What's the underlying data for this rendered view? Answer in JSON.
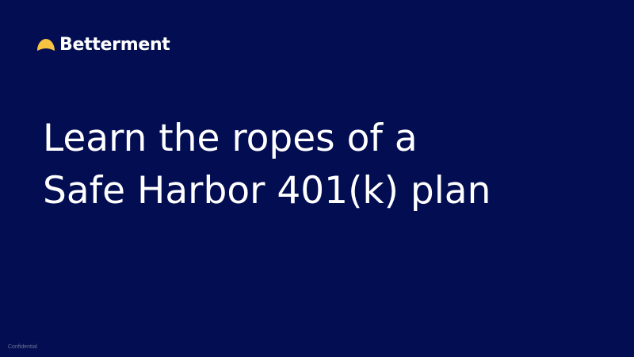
{
  "brand": {
    "name": "Betterment",
    "icon": "sunrise-logo-icon",
    "icon_color": "#f6c343"
  },
  "headline": {
    "line1": "Learn the ropes of a",
    "line2": "Safe Harbor 401(k) plan"
  },
  "footer": {
    "label": "Confidential"
  },
  "colors": {
    "background": "#020d52",
    "text": "#ffffff"
  }
}
